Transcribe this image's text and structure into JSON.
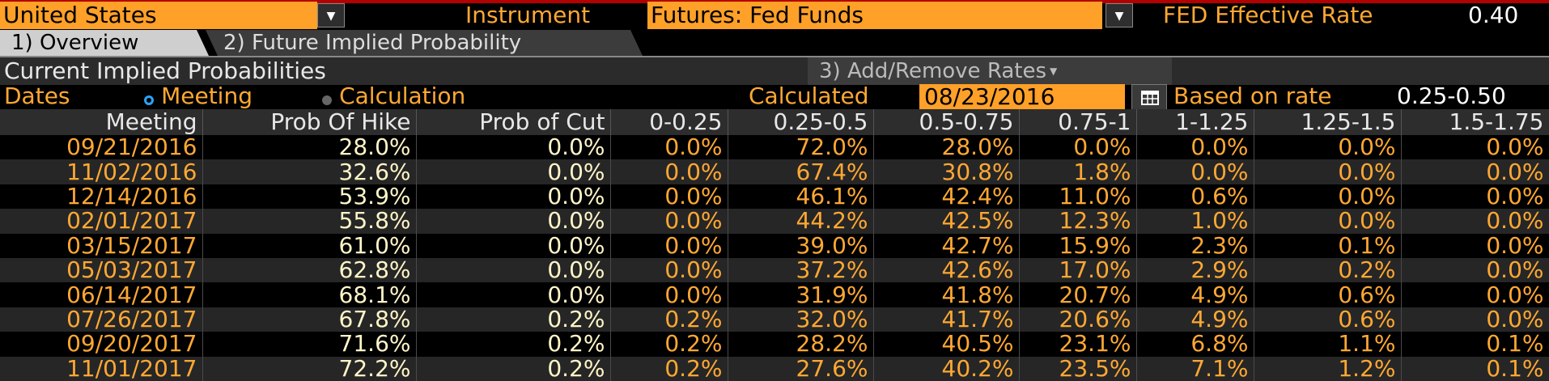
{
  "header": {
    "country": "United States",
    "instrument_label": "Instrument",
    "instrument_value": "Futures: Fed Funds",
    "fed_rate_label": "FED Effective Rate",
    "fed_rate_value": "0.40"
  },
  "tabs": [
    {
      "label": "1) Overview"
    },
    {
      "label": "2) Future Implied Probability"
    }
  ],
  "section": {
    "title": "Current Implied Probabilities",
    "add_remove_label": "3) Add/Remove Rates"
  },
  "controls": {
    "dates_label": "Dates",
    "radio_meeting": "Meeting",
    "radio_calculation": "Calculation",
    "calculated_label": "Calculated",
    "calculated_date": "08/23/2016",
    "based_on_label": "Based on rate",
    "based_on_value": "0.25-0.50"
  },
  "table": {
    "columns": [
      "Meeting",
      "Prob Of Hike",
      "Prob of Cut",
      "0-0.25",
      "0.25-0.5",
      "0.5-0.75",
      "0.75-1",
      "1-1.25",
      "1.25-1.5",
      "1.5-1.75"
    ],
    "rows": [
      [
        "09/21/2016",
        "28.0%",
        "0.0%",
        "0.0%",
        "72.0%",
        "28.0%",
        "0.0%",
        "0.0%",
        "0.0%",
        "0.0%"
      ],
      [
        "11/02/2016",
        "32.6%",
        "0.0%",
        "0.0%",
        "67.4%",
        "30.8%",
        "1.8%",
        "0.0%",
        "0.0%",
        "0.0%"
      ],
      [
        "12/14/2016",
        "53.9%",
        "0.0%",
        "0.0%",
        "46.1%",
        "42.4%",
        "11.0%",
        "0.6%",
        "0.0%",
        "0.0%"
      ],
      [
        "02/01/2017",
        "55.8%",
        "0.0%",
        "0.0%",
        "44.2%",
        "42.5%",
        "12.3%",
        "1.0%",
        "0.0%",
        "0.0%"
      ],
      [
        "03/15/2017",
        "61.0%",
        "0.0%",
        "0.0%",
        "39.0%",
        "42.7%",
        "15.9%",
        "2.3%",
        "0.1%",
        "0.0%"
      ],
      [
        "05/03/2017",
        "62.8%",
        "0.0%",
        "0.0%",
        "37.2%",
        "42.6%",
        "17.0%",
        "2.9%",
        "0.2%",
        "0.0%"
      ],
      [
        "06/14/2017",
        "68.1%",
        "0.0%",
        "0.0%",
        "31.9%",
        "41.8%",
        "20.7%",
        "4.9%",
        "0.6%",
        "0.0%"
      ],
      [
        "07/26/2017",
        "67.8%",
        "0.2%",
        "0.2%",
        "32.0%",
        "41.7%",
        "20.6%",
        "4.9%",
        "0.6%",
        "0.0%"
      ],
      [
        "09/20/2017",
        "71.6%",
        "0.2%",
        "0.2%",
        "28.2%",
        "40.5%",
        "23.1%",
        "6.8%",
        "1.1%",
        "0.1%"
      ],
      [
        "11/01/2017",
        "72.2%",
        "0.2%",
        "0.2%",
        "27.6%",
        "40.2%",
        "23.5%",
        "7.1%",
        "1.2%",
        "0.1%"
      ]
    ]
  },
  "icons": {
    "dropdown": "chevron-down-icon",
    "calendar": "calendar-icon",
    "add_remove": "caret-down-icon"
  },
  "colors": {
    "accent": "#ffa028",
    "label": "#ffa833",
    "header_bg": "#2d2d2d",
    "radio_selected": "#29a4ff"
  }
}
